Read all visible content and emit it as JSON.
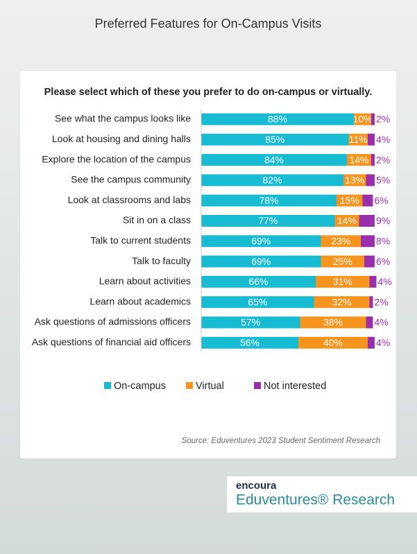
{
  "chart_data": {
    "type": "stacked-barh",
    "title": "Preferred Features for On-Campus Visits",
    "subtitle": "Please select which of these you prefer to do on-campus or virtually.",
    "source": "Source: Eduventures 2023 Student Sentiment Research",
    "categories": [
      "See what the campus looks like",
      "Look at housing and dining halls",
      "Explore the location of the campus",
      "See the campus community",
      "Look at classrooms and labs",
      "Sit in on a class",
      "Talk to current students",
      "Talk to faculty",
      "Learn about activities",
      "Learn about academics",
      "Ask questions of admissions officers",
      "Ask questions of financial aid officers"
    ],
    "xlim": [
      0,
      100
    ],
    "series": [
      {
        "name": "On-campus",
        "color": "#17bcd3",
        "values": [
          88,
          85,
          84,
          82,
          78,
          77,
          69,
          69,
          66,
          65,
          57,
          56
        ],
        "value_labels": [
          "88%",
          "85%",
          "84%",
          "82%",
          "78%",
          "77%",
          "69%",
          "69%",
          "66%",
          "65%",
          "57%",
          "56%"
        ]
      },
      {
        "name": "Virtual",
        "color": "#f7941d",
        "values": [
          10,
          11,
          14,
          13,
          15,
          14,
          23,
          25,
          31,
          32,
          38,
          40
        ],
        "value_labels": [
          "10%",
          "11%",
          "14%",
          "13%",
          "15%",
          "14%",
          "23%",
          "25%",
          "31%",
          "32%",
          "38%",
          "40%"
        ]
      },
      {
        "name": "Not interested",
        "color": "#9a2fae",
        "values": [
          2,
          4,
          2,
          5,
          6,
          9,
          8,
          6,
          4,
          2,
          4,
          4
        ],
        "value_labels": [
          "2%",
          "4%",
          "2%",
          "5%",
          "6%",
          "9%",
          "8%",
          "6%",
          "4%",
          "2%",
          "4%",
          "4%"
        ]
      }
    ]
  },
  "branding": {
    "logo": "encoura",
    "name": "Eduventures® Research"
  }
}
